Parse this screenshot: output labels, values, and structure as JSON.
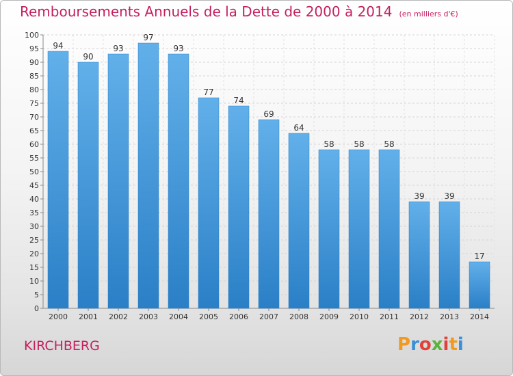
{
  "title": "Remboursements Annuels de la Dette de 2000 à 2014",
  "unit": "(en milliers d'€)",
  "commune": "KIRCHBERG",
  "logo": "Proxiti",
  "colors": {
    "bar_top": "#62b0ea",
    "bar_bottom": "#2a7fc6",
    "title": "#c41f5e"
  },
  "chart_data": {
    "type": "bar",
    "title": "Remboursements Annuels de la Dette de 2000 à 2014",
    "subtitle": "(en milliers d'€)",
    "categories": [
      "2000",
      "2001",
      "2002",
      "2003",
      "2004",
      "2005",
      "2006",
      "2007",
      "2008",
      "2009",
      "2010",
      "2011",
      "2012",
      "2013",
      "2014"
    ],
    "values": [
      94,
      90,
      93,
      97,
      93,
      77,
      74,
      69,
      64,
      58,
      58,
      58,
      39,
      39,
      17
    ],
    "ylim": [
      0,
      100
    ],
    "yticks": [
      0,
      5,
      10,
      15,
      20,
      25,
      30,
      35,
      40,
      45,
      50,
      55,
      60,
      65,
      70,
      75,
      80,
      85,
      90,
      95,
      100
    ],
    "grid": true,
    "xlabel": "",
    "ylabel": ""
  }
}
